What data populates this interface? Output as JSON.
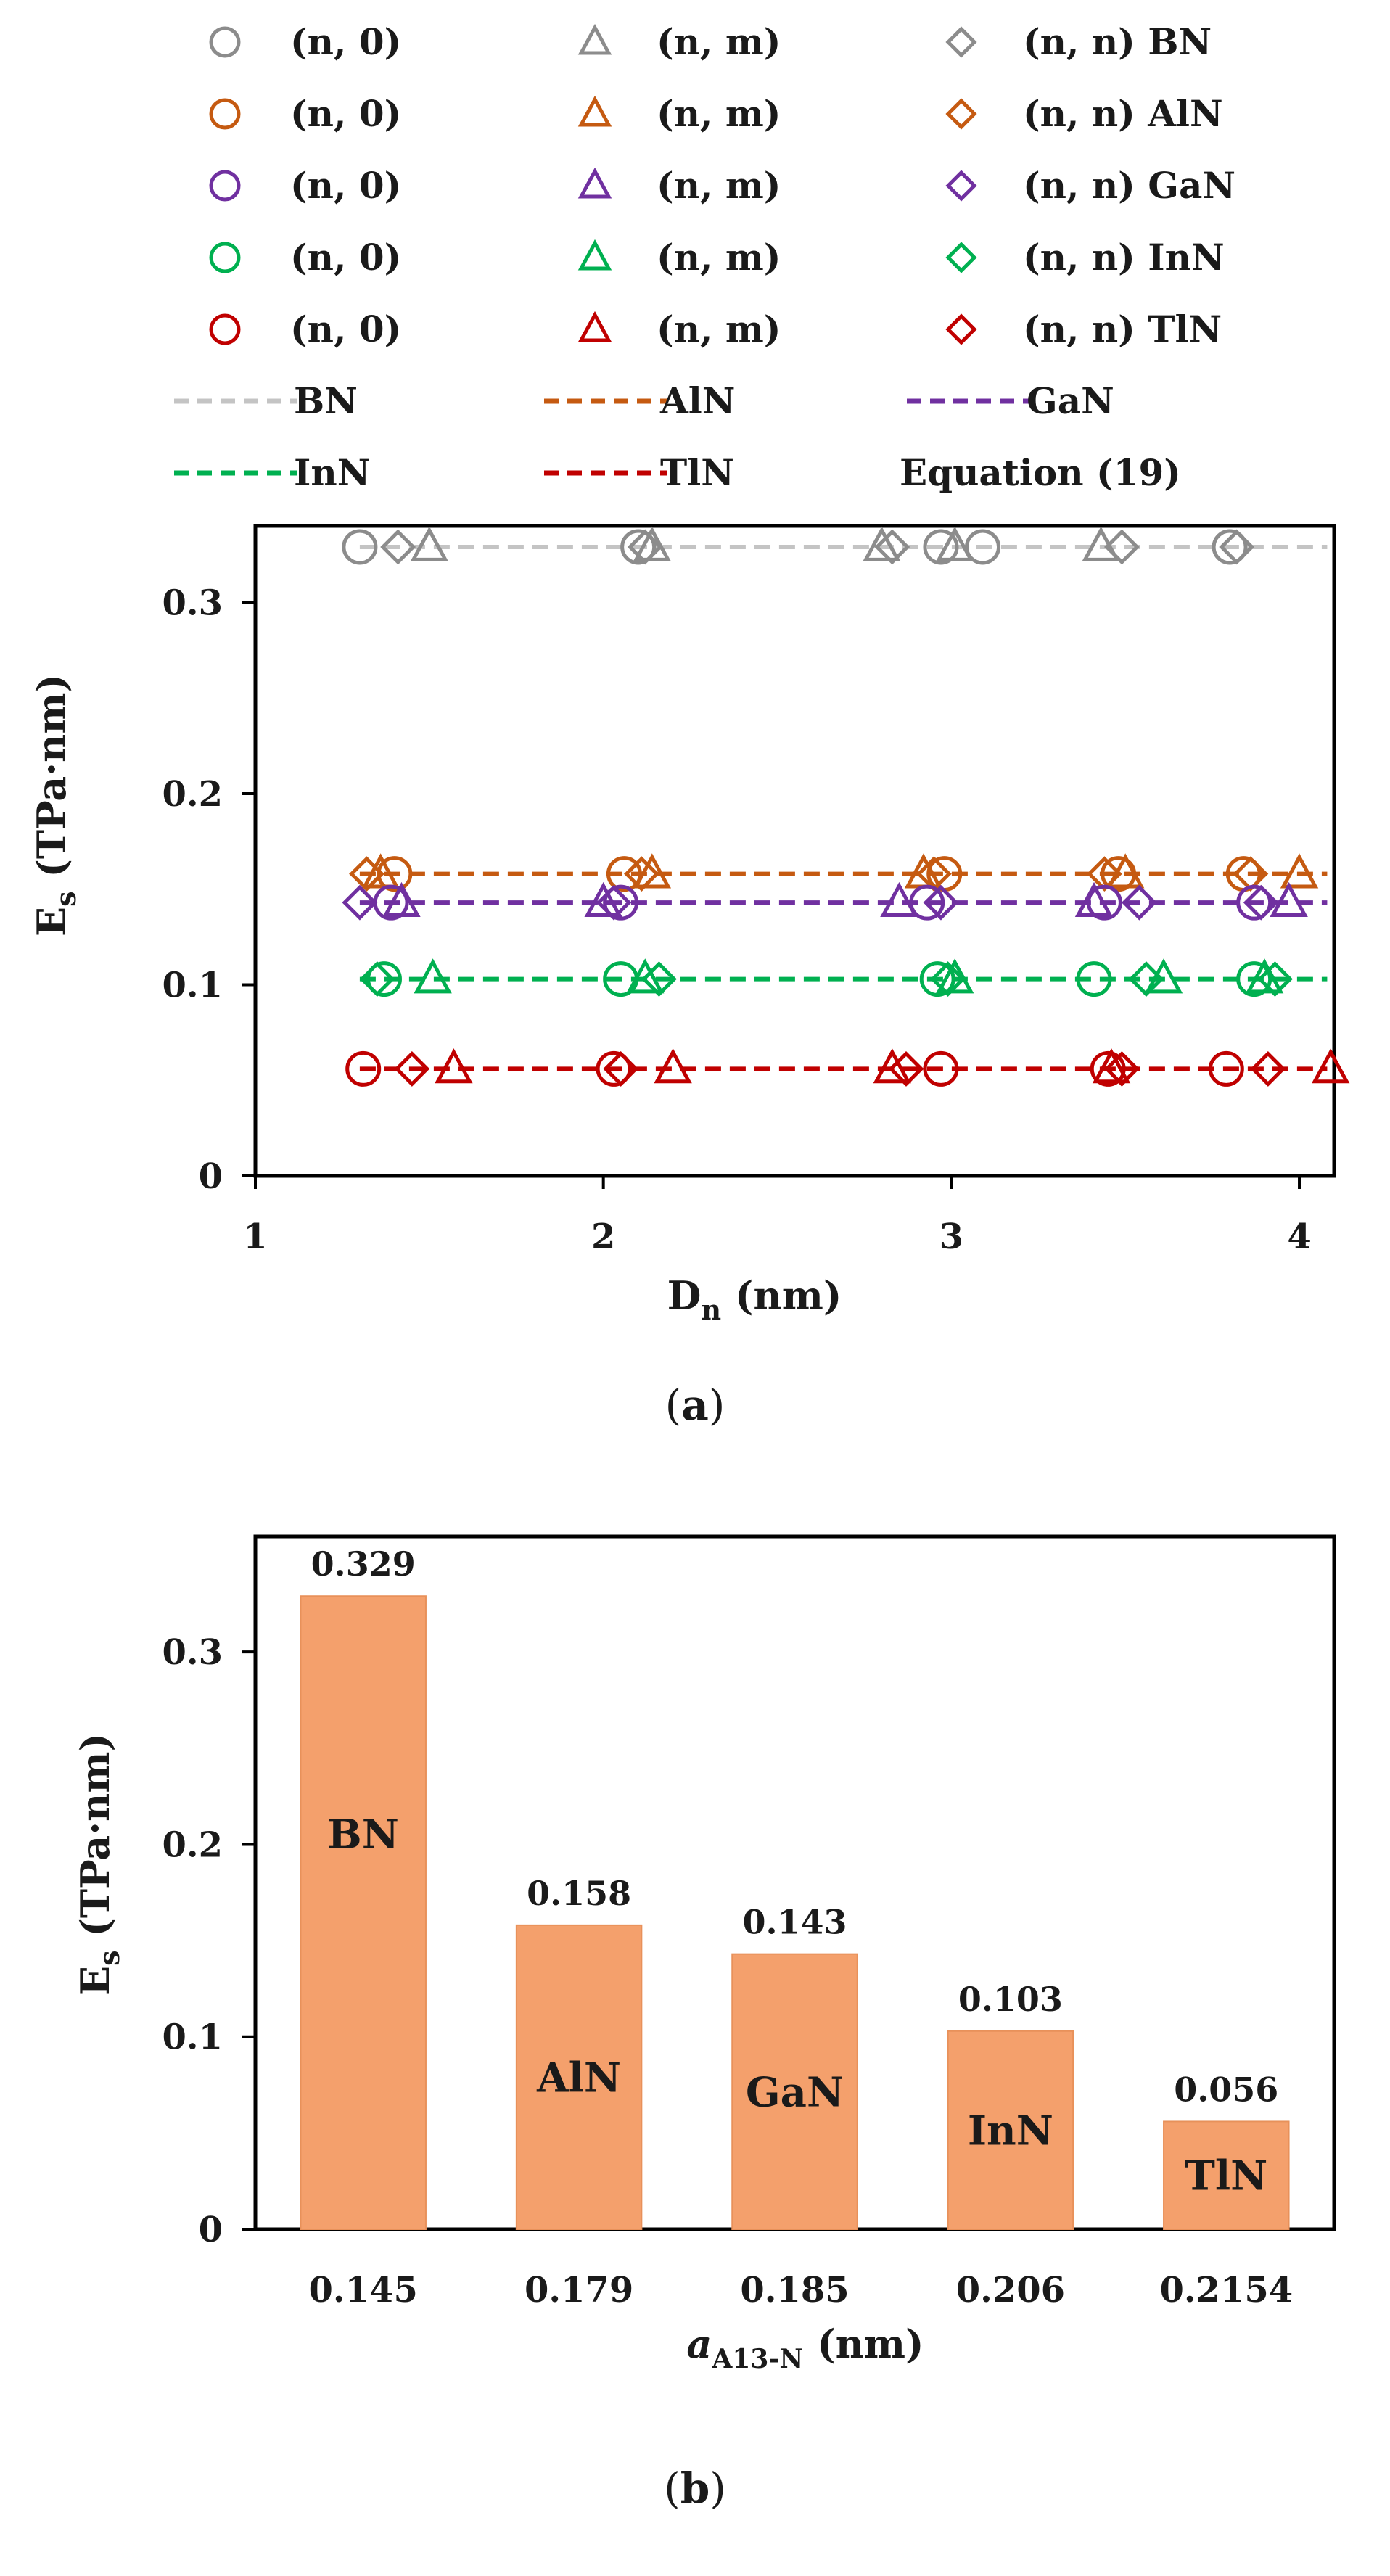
{
  "chart_data": [
    {
      "type": "scatter",
      "panel": "(a)",
      "xlabel": "D",
      "xlabel_sub": "n",
      "xlabel_unit": " (nm)",
      "ylabel": "E",
      "ylabel_sub": "s",
      "ylabel_unit": " (TPa·nm)",
      "xlim": [
        1,
        4.1
      ],
      "ylim": [
        0,
        0.34
      ],
      "x_ticks": [
        "1",
        "2",
        "3",
        "4"
      ],
      "y_ticks": [
        "0",
        "0.1",
        "0.2",
        "0.3"
      ],
      "grid": false,
      "legend_position": "top",
      "legend": {
        "rows": [
          [
            {
              "marker": "circle",
              "material": "BN",
              "label": "(n, 0)"
            },
            {
              "marker": "triangle",
              "material": "BN",
              "label": "(n, m)"
            },
            {
              "marker": "diamond",
              "material": "BN",
              "label": "(n, n) BN"
            }
          ],
          [
            {
              "marker": "circle",
              "material": "AlN",
              "label": "(n, 0)"
            },
            {
              "marker": "triangle",
              "material": "AlN",
              "label": "(n, m)"
            },
            {
              "marker": "diamond",
              "material": "AlN",
              "label": "(n, n) AlN"
            }
          ],
          [
            {
              "marker": "circle",
              "material": "GaN",
              "label": "(n, 0)"
            },
            {
              "marker": "triangle",
              "material": "GaN",
              "label": "(n, m)"
            },
            {
              "marker": "diamond",
              "material": "GaN",
              "label": "(n, n) GaN"
            }
          ],
          [
            {
              "marker": "circle",
              "material": "InN",
              "label": "(n, 0)"
            },
            {
              "marker": "triangle",
              "material": "InN",
              "label": "(n, m)"
            },
            {
              "marker": "diamond",
              "material": "InN",
              "label": "(n, n) InN"
            }
          ],
          [
            {
              "marker": "circle",
              "material": "TlN",
              "label": "(n, 0)"
            },
            {
              "marker": "triangle",
              "material": "TlN",
              "label": "(n, m)"
            },
            {
              "marker": "diamond",
              "material": "TlN",
              "label": "(n, n) TlN"
            }
          ],
          [
            {
              "marker": "dash",
              "material": "BN",
              "label": "BN"
            },
            {
              "marker": "dash",
              "material": "AlN",
              "label": "AlN"
            },
            {
              "marker": "dash",
              "material": "GaN",
              "label": "GaN"
            }
          ],
          [
            {
              "marker": "dash",
              "material": "InN",
              "label": "InN"
            },
            {
              "marker": "dash",
              "material": "TlN",
              "label": "TlN"
            },
            {
              "marker": "none",
              "material": "",
              "label": "Equation (19)"
            }
          ]
        ]
      },
      "series": [
        {
          "material": "BN",
          "color": "#8c8c8c",
          "line_color": "#c4c4c4",
          "equation_value": 0.329,
          "circles": [
            [
              1.3,
              0.329
            ],
            [
              2.1,
              0.329
            ],
            [
              2.97,
              0.329
            ],
            [
              3.09,
              0.329
            ],
            [
              3.8,
              0.329
            ]
          ],
          "triangles": [
            [
              1.5,
              0.329
            ],
            [
              2.14,
              0.329
            ],
            [
              2.8,
              0.329
            ],
            [
              3.01,
              0.329
            ],
            [
              3.43,
              0.329
            ]
          ],
          "diamonds": [
            [
              1.41,
              0.329
            ],
            [
              2.12,
              0.329
            ],
            [
              2.83,
              0.329
            ],
            [
              3.49,
              0.329
            ],
            [
              3.82,
              0.329
            ]
          ]
        },
        {
          "material": "AlN",
          "color": "#c55a11",
          "line_color": "#c55a11",
          "equation_value": 0.158,
          "circles": [
            [
              1.4,
              0.158
            ],
            [
              2.06,
              0.158
            ],
            [
              2.98,
              0.158
            ],
            [
              3.48,
              0.158
            ],
            [
              3.84,
              0.158
            ]
          ],
          "triangles": [
            [
              1.36,
              0.158
            ],
            [
              2.14,
              0.158
            ],
            [
              2.92,
              0.158
            ],
            [
              3.5,
              0.158
            ],
            [
              4.0,
              0.158
            ]
          ],
          "diamonds": [
            [
              1.32,
              0.158
            ],
            [
              2.11,
              0.158
            ],
            [
              2.95,
              0.158
            ],
            [
              3.44,
              0.158
            ],
            [
              3.86,
              0.158
            ]
          ]
        },
        {
          "material": "GaN",
          "color": "#7030a0",
          "line_color": "#7030a0",
          "equation_value": 0.143,
          "circles": [
            [
              1.39,
              0.143
            ],
            [
              2.05,
              0.143
            ],
            [
              2.93,
              0.143
            ],
            [
              3.44,
              0.143
            ],
            [
              3.87,
              0.143
            ]
          ],
          "triangles": [
            [
              1.42,
              0.143
            ],
            [
              2.0,
              0.143
            ],
            [
              2.85,
              0.143
            ],
            [
              3.41,
              0.143
            ],
            [
              3.97,
              0.143
            ]
          ],
          "diamonds": [
            [
              1.3,
              0.143
            ],
            [
              2.03,
              0.143
            ],
            [
              2.97,
              0.143
            ],
            [
              3.54,
              0.143
            ],
            [
              3.89,
              0.143
            ]
          ]
        },
        {
          "material": "InN",
          "color": "#00b050",
          "line_color": "#00b050",
          "equation_value": 0.103,
          "circles": [
            [
              1.37,
              0.103
            ],
            [
              2.05,
              0.103
            ],
            [
              2.96,
              0.103
            ],
            [
              3.41,
              0.103
            ],
            [
              3.87,
              0.103
            ]
          ],
          "triangles": [
            [
              1.51,
              0.103
            ],
            [
              2.12,
              0.103
            ],
            [
              3.01,
              0.103
            ],
            [
              3.61,
              0.103
            ],
            [
              3.9,
              0.103
            ]
          ],
          "diamonds": [
            [
              1.35,
              0.103
            ],
            [
              2.16,
              0.103
            ],
            [
              2.99,
              0.103
            ],
            [
              3.56,
              0.103
            ],
            [
              3.93,
              0.103
            ]
          ]
        },
        {
          "material": "TlN",
          "color": "#c00000",
          "line_color": "#c00000",
          "equation_value": 0.056,
          "circles": [
            [
              1.31,
              0.056
            ],
            [
              2.03,
              0.056
            ],
            [
              2.97,
              0.056
            ],
            [
              3.45,
              0.056
            ],
            [
              3.79,
              0.056
            ]
          ],
          "triangles": [
            [
              1.57,
              0.056
            ],
            [
              2.2,
              0.056
            ],
            [
              2.83,
              0.056
            ],
            [
              3.46,
              0.056
            ],
            [
              4.09,
              0.056
            ]
          ],
          "diamonds": [
            [
              1.45,
              0.056
            ],
            [
              2.05,
              0.056
            ],
            [
              2.87,
              0.056
            ],
            [
              3.49,
              0.056
            ],
            [
              3.91,
              0.056
            ]
          ]
        }
      ]
    },
    {
      "type": "bar",
      "panel": "(b)",
      "xlabel": "a",
      "xlabel_sub": "A13-N",
      "xlabel_unit": " (nm)",
      "ylabel": "E",
      "ylabel_sub": "s",
      "ylabel_unit": " (TPa·nm)",
      "categories": [
        "0.145",
        "0.179",
        "0.185",
        "0.206",
        "0.2154"
      ],
      "values": [
        0.329,
        0.158,
        0.143,
        0.103,
        0.056
      ],
      "value_labels": [
        "0.329",
        "0.158",
        "0.143",
        "0.103",
        "0.056"
      ],
      "bar_labels": [
        "BN",
        "AlN",
        "GaN",
        "InN",
        "TlN"
      ],
      "ylim": [
        0,
        0.36
      ],
      "y_ticks": [
        "0",
        "0.1",
        "0.2",
        "0.3"
      ],
      "bar_color": "#f4a06c",
      "grid": false
    }
  ]
}
